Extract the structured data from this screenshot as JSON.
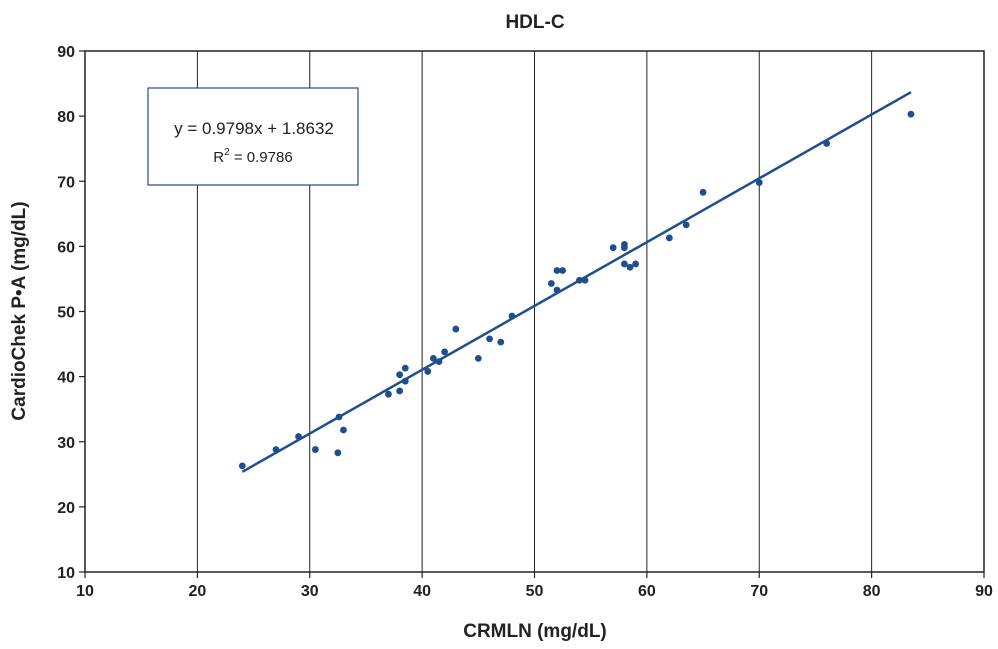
{
  "chart_data": {
    "type": "scatter",
    "title": "HDL-C",
    "xlabel": "CRMLN (mg/dL)",
    "ylabel": "CardioChek P•A (mg/dL)",
    "xlim": [
      10,
      90
    ],
    "ylim": [
      10,
      90
    ],
    "x_ticks": [
      10,
      20,
      30,
      40,
      50,
      60,
      70,
      80,
      90
    ],
    "y_ticks": [
      10,
      20,
      30,
      40,
      50,
      60,
      70,
      80,
      90
    ],
    "vertical_grid": true,
    "horizontal_grid": false,
    "point_color": "#1f4e8c",
    "line_color": "#1f4e8c",
    "trendline": {
      "slope": 0.9798,
      "intercept": 1.8632,
      "x_range": [
        24,
        83.5
      ],
      "equation_label": "y = 0.9798x + 1.8632",
      "r2_prefix": "R",
      "r2_sup": "2",
      "r2_value": " = 0.9786"
    },
    "points": [
      {
        "x": 24.0,
        "y": 26.3
      },
      {
        "x": 27.0,
        "y": 28.8
      },
      {
        "x": 29.0,
        "y": 30.8
      },
      {
        "x": 30.5,
        "y": 28.8
      },
      {
        "x": 32.5,
        "y": 28.3
      },
      {
        "x": 32.6,
        "y": 33.8
      },
      {
        "x": 33.0,
        "y": 31.8
      },
      {
        "x": 37.0,
        "y": 37.3
      },
      {
        "x": 38.0,
        "y": 40.3
      },
      {
        "x": 38.0,
        "y": 37.8
      },
      {
        "x": 38.5,
        "y": 41.3
      },
      {
        "x": 38.5,
        "y": 39.3
      },
      {
        "x": 40.5,
        "y": 40.8
      },
      {
        "x": 41.0,
        "y": 42.8
      },
      {
        "x": 41.5,
        "y": 42.3
      },
      {
        "x": 42.0,
        "y": 43.8
      },
      {
        "x": 43.0,
        "y": 47.3
      },
      {
        "x": 45.0,
        "y": 42.8
      },
      {
        "x": 46.0,
        "y": 45.8
      },
      {
        "x": 47.0,
        "y": 45.3
      },
      {
        "x": 48.0,
        "y": 49.3
      },
      {
        "x": 51.5,
        "y": 54.3
      },
      {
        "x": 52.0,
        "y": 53.3
      },
      {
        "x": 52.0,
        "y": 56.3
      },
      {
        "x": 52.5,
        "y": 56.3
      },
      {
        "x": 54.0,
        "y": 54.8
      },
      {
        "x": 54.5,
        "y": 54.8
      },
      {
        "x": 57.0,
        "y": 59.8
      },
      {
        "x": 58.0,
        "y": 60.3
      },
      {
        "x": 58.0,
        "y": 59.8
      },
      {
        "x": 58.0,
        "y": 57.3
      },
      {
        "x": 58.5,
        "y": 56.8
      },
      {
        "x": 59.0,
        "y": 57.3
      },
      {
        "x": 62.0,
        "y": 61.3
      },
      {
        "x": 63.5,
        "y": 63.3
      },
      {
        "x": 65.0,
        "y": 68.3
      },
      {
        "x": 70.0,
        "y": 69.8
      },
      {
        "x": 76.0,
        "y": 75.8
      },
      {
        "x": 83.5,
        "y": 80.3
      }
    ]
  }
}
